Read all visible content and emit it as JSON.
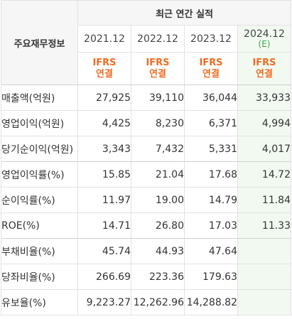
{
  "table": {
    "title": "최근 연간 실적",
    "row_header_label": "주요재무정보",
    "columns": [
      {
        "year": "2021.12",
        "estimate": "",
        "basis": [
          "IFRS",
          "연결"
        ],
        "recent": false
      },
      {
        "year": "2022.12",
        "estimate": "",
        "basis": [
          "IFRS",
          "연결"
        ],
        "recent": false
      },
      {
        "year": "2023.12",
        "estimate": "",
        "basis": [
          "IFRS",
          "연결"
        ],
        "recent": false
      },
      {
        "year": "2024.12",
        "estimate": "(E)",
        "basis": [
          "IFRS",
          "연결"
        ],
        "recent": true
      }
    ],
    "rows": [
      {
        "label": "매출액(억원)",
        "values": [
          "27,925",
          "39,110",
          "36,044",
          "33,933"
        ],
        "group_start": true
      },
      {
        "label": "영업이익(억원)",
        "values": [
          "4,425",
          "8,230",
          "6,371",
          "4,994"
        ],
        "group_start": false
      },
      {
        "label": "당기순이익(억원)",
        "values": [
          "3,343",
          "7,432",
          "5,331",
          "4,017"
        ],
        "group_start": false
      },
      {
        "label": "영업이익률(%)",
        "values": [
          "15.85",
          "21.04",
          "17.68",
          "14.72"
        ],
        "group_start": true
      },
      {
        "label": "순이익률(%)",
        "values": [
          "11.97",
          "19.00",
          "14.79",
          "11.84"
        ],
        "group_start": false
      },
      {
        "label": "ROE(%)",
        "values": [
          "14.71",
          "26.80",
          "17.03",
          "11.33"
        ],
        "group_start": false
      },
      {
        "label": "부채비율(%)",
        "values": [
          "45.74",
          "44.93",
          "47.64",
          ""
        ],
        "group_start": true
      },
      {
        "label": "당좌비율(%)",
        "values": [
          "266.69",
          "223.36",
          "179.63",
          ""
        ],
        "group_start": false
      },
      {
        "label": "유보율(%)",
        "values": [
          "9,223.27",
          "12,262.96",
          "14,288.82",
          ""
        ],
        "group_start": false
      }
    ]
  },
  "colors": {
    "ifrs_orange": "#f26b21",
    "estimate_green": "#3ea742",
    "recent_column_bg": "#f1f9f1",
    "header_bg": "#f6f6f6",
    "border": "#e2e2e2"
  }
}
